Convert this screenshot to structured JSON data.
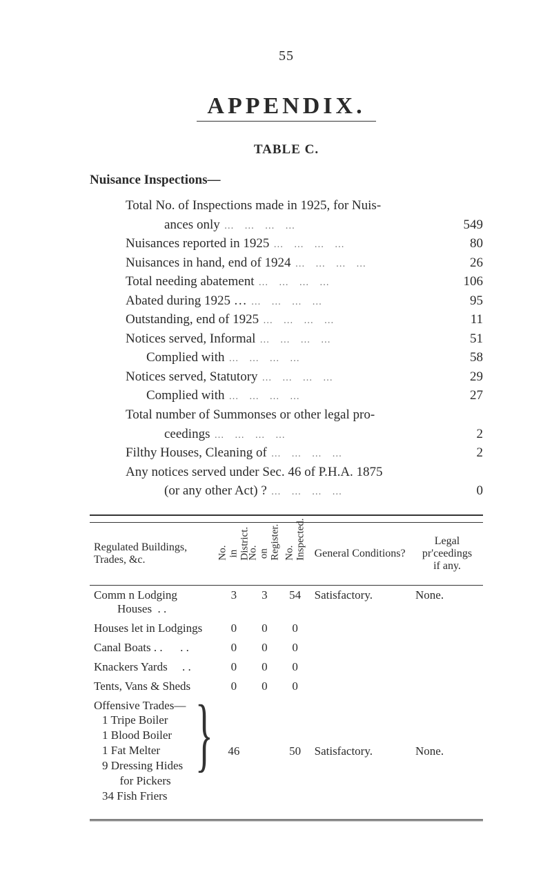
{
  "page_number": "55",
  "appendix_title": "APPENDIX.",
  "table_label": "TABLE C.",
  "section_heading": "Nuisance Inspections—",
  "inspections": [
    {
      "label_a": "Total No. of Inspections made in 1925, for Nuis-",
      "label_b": "ances only",
      "value": "549",
      "wrap": true
    },
    {
      "label_a": "Nuisances reported in 1925",
      "value": "80"
    },
    {
      "label_a": "Nuisances in hand, end of 1924",
      "value": "26"
    },
    {
      "label_a": "Total needing abatement",
      "value": "106"
    },
    {
      "label_a": "Abated during 1925 …",
      "value": "95"
    },
    {
      "label_a": "Outstanding, end of 1925",
      "value": "11"
    },
    {
      "label_a": "Notices served, Informal",
      "value": "51"
    },
    {
      "label_a": "Complied with",
      "value": "58",
      "indent": true
    },
    {
      "label_a": "Notices served, Statutory",
      "value": "29"
    },
    {
      "label_a": "Complied with",
      "value": "27",
      "indent": true
    },
    {
      "label_a": "Total number of Summonses or other legal pro-",
      "label_b": "ceedings",
      "value": "2",
      "wrap": true
    },
    {
      "label_a": "Filthy Houses, Cleaning of",
      "value": "2"
    },
    {
      "label_a": "Any notices served under Sec. 46 of P.H.A. 1875",
      "label_b": "(or any other Act) ?",
      "value": "0",
      "wrap": true
    }
  ],
  "table": {
    "headers": {
      "regulated": "Regulated Buildings,\nTrades, &c.",
      "no_in_district": "No. in\nDistrict.",
      "no_on_register": "No. on\nRegister.",
      "no_inspected": "No.\nInspected.",
      "general_conditions": "General Conditions?",
      "legal": "Legal\npr'ceedings\nif any."
    },
    "rows": [
      {
        "label": "Comm n Lodging\n        Houses  . .",
        "c1": "3",
        "c2": "3",
        "c3": "54",
        "gc": "Satisfactory.",
        "legal": "None."
      },
      {
        "label": "Houses let in Lodgings",
        "c1": "0",
        "c2": "0",
        "c3": "0",
        "gc": "",
        "legal": ""
      },
      {
        "label": "Canal Boats . .      . .",
        "c1": "0",
        "c2": "0",
        "c3": "0",
        "gc": "",
        "legal": ""
      },
      {
        "label": "Knackers Yards     . .",
        "c1": "0",
        "c2": "0",
        "c3": "0",
        "gc": "",
        "legal": ""
      },
      {
        "label": "Tents, Vans & Sheds",
        "c1": "0",
        "c2": "0",
        "c3": "0",
        "gc": "",
        "legal": ""
      }
    ],
    "offensive": {
      "heading": "Offensive Trades—",
      "items": [
        "1 Tripe Boiler",
        "1 Blood Boiler",
        "1 Fat Melter",
        "9 Dressing Hides",
        "      for Pickers",
        "34 Fish Friers"
      ],
      "c1": "46",
      "c3": "50",
      "gc": "Satisfactory.",
      "legal": "None."
    }
  }
}
